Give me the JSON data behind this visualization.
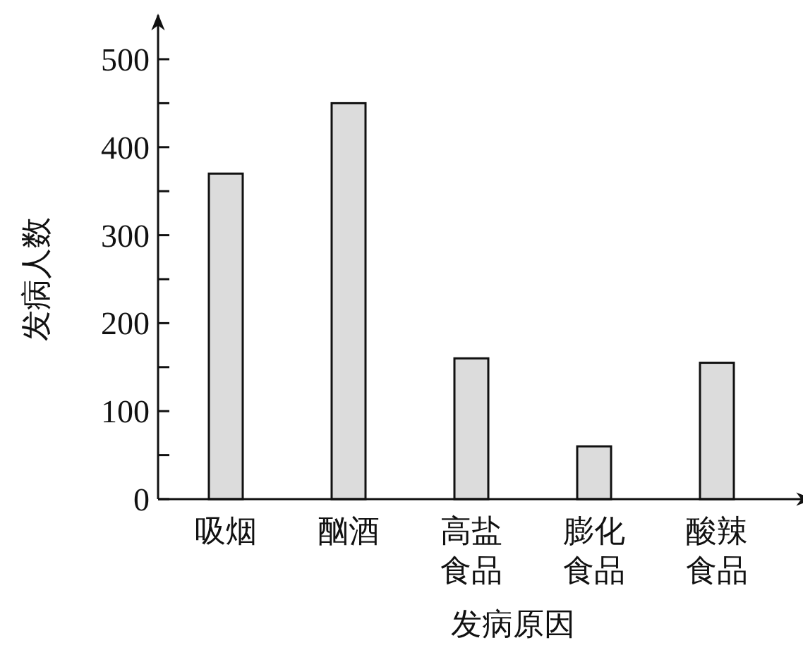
{
  "chart_data": {
    "type": "bar",
    "xlabel": "发病原因",
    "ylabel": "发病人数",
    "categories": [
      "吸烟",
      "酗酒",
      "高盐食品",
      "膨化食品",
      "酸辣食品"
    ],
    "values": [
      370,
      450,
      160,
      60,
      155
    ],
    "color": "#dcdcdc",
    "ylim": [
      0,
      550
    ],
    "yticks": [
      0,
      {
        "value": 50,
        "label": null
      },
      100,
      {
        "value": 150,
        "label": null
      },
      200,
      {
        "value": 250,
        "label": null
      },
      300,
      {
        "value": 350,
        "label": null
      },
      400,
      {
        "value": 450,
        "label": null
      },
      500
    ]
  }
}
